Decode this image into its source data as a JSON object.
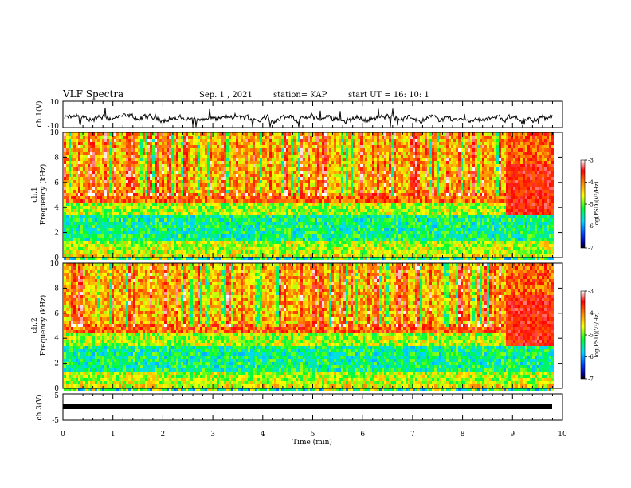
{
  "header": {
    "title": "VLF Spectra",
    "date": "Sep. 1 , 2021",
    "station": "station= KAP",
    "start": "start  UT =   16: 10: 1"
  },
  "chart_data": [
    {
      "type": "line",
      "panel": "ch1-waveform",
      "ylabel": "ch.1(V)",
      "ylim": [
        -10,
        10
      ],
      "yticks": [
        "10",
        "-10"
      ],
      "xlim": [
        0,
        10
      ],
      "note": "noisy voltage trace around approx -3 V spanning whole 0-9.8 min"
    },
    {
      "type": "heatmap",
      "panel": "ch1-spectrogram",
      "ylabel_line1": "ch.1",
      "ylabel_line2": "Frequency (kHz)",
      "ylim": [
        0,
        10
      ],
      "yticks": [
        "0",
        "2",
        "4",
        "6",
        "8",
        "10"
      ],
      "xlim": [
        0,
        10
      ],
      "data_end_min": 9.8,
      "colorbar": {
        "label": "log(PSD)(V²/Hz)",
        "range": [
          -7,
          -3
        ],
        "ticks": [
          "-3",
          "-4",
          "-5",
          "-6",
          "-7"
        ]
      }
    },
    {
      "type": "heatmap",
      "panel": "ch2-spectrogram",
      "ylabel_line1": "ch.2",
      "ylabel_line2": "Frequency (kHz)",
      "ylim": [
        0,
        10
      ],
      "yticks": [
        "0",
        "2",
        "4",
        "6",
        "8",
        "10"
      ],
      "xlim": [
        0,
        10
      ],
      "data_end_min": 9.8,
      "colorbar": {
        "label": "log(PSD)(V²/Hz)",
        "range": [
          -7,
          -3
        ],
        "ticks": [
          "-3",
          "-4",
          "-5",
          "-6",
          "-7"
        ]
      }
    },
    {
      "type": "line",
      "panel": "ch3-waveform",
      "ylabel": "ch.3(V)",
      "ylim": [
        -5,
        5
      ],
      "yticks": [
        "5",
        "-5"
      ],
      "xlim": [
        0,
        10
      ],
      "note": "constant trace near -1 V"
    }
  ],
  "x_axis": {
    "label": "Time  (min)",
    "ticks": [
      "0",
      "1",
      "2",
      "3",
      "4",
      "5",
      "6",
      "7",
      "8",
      "9",
      "10"
    ]
  }
}
